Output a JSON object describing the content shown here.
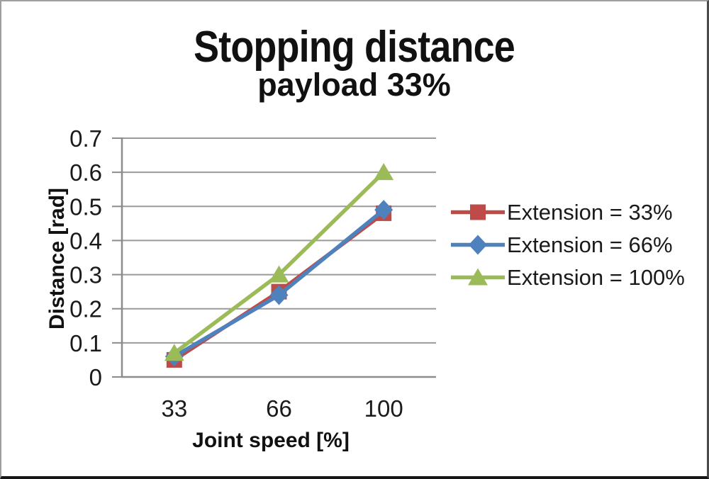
{
  "title": "Stopping distance",
  "subtitle": "payload 33%",
  "chart_data": {
    "type": "line",
    "categories": [
      "33",
      "66",
      "100"
    ],
    "series": [
      {
        "name": "Extension = 33%",
        "marker": "square",
        "color": "#be4b48",
        "values": [
          0.05,
          0.25,
          0.48
        ]
      },
      {
        "name": "Extension = 66%",
        "marker": "diamond",
        "color": "#4f81bd",
        "values": [
          0.06,
          0.24,
          0.49
        ]
      },
      {
        "name": "Extension = 100%",
        "marker": "triangle",
        "color": "#9bbb59",
        "values": [
          0.07,
          0.3,
          0.6
        ]
      }
    ],
    "xlabel": "Joint speed [%]",
    "ylabel": "Distance [rad]",
    "ylim": [
      0,
      0.7
    ],
    "ytick_step": 0.1,
    "ytick_labels": [
      "0",
      "0.1",
      "0.2",
      "0.3",
      "0.4",
      "0.5",
      "0.6",
      "0.7"
    ],
    "grid": true,
    "legend_position": "right",
    "gridline_color": "#9a9a9a",
    "axis_color": "#8c8c8c",
    "text_color": "#1a1a1a"
  }
}
